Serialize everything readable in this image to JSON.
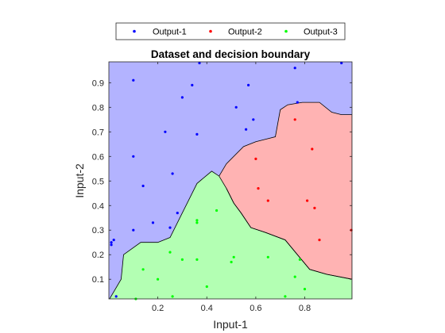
{
  "chart_data": {
    "type": "scatter",
    "title": "Dataset and decision boundary",
    "xlabel": "Input-1",
    "ylabel": "Input-2",
    "xlim": [
      0.0,
      0.993
    ],
    "ylim": [
      0.02,
      0.985
    ],
    "xticks": [
      0.2,
      0.4,
      0.6,
      0.8
    ],
    "xtick_labels": [
      "0.2",
      "0.4",
      "0.6",
      "0.8"
    ],
    "yticks": [
      0.1,
      0.2,
      0.3,
      0.4,
      0.5,
      0.6,
      0.7,
      0.8,
      0.9
    ],
    "ytick_labels": [
      "0.1",
      "0.2",
      "0.3",
      "0.4",
      "0.5",
      "0.6",
      "0.7",
      "0.8",
      "0.9"
    ],
    "grid": false,
    "legend_position": "top, outside, horizontal",
    "series": [
      {
        "name": "Output-1",
        "color": "#0000ff",
        "region_color": "#b3b3ff",
        "points": [
          [
            0.01,
            0.25
          ],
          [
            0.02,
            0.26
          ],
          [
            0.01,
            0.24
          ],
          [
            0.03,
            0.03
          ],
          [
            0.1,
            0.3
          ],
          [
            0.1,
            0.6
          ],
          [
            0.1,
            0.91
          ],
          [
            0.14,
            0.48
          ],
          [
            0.18,
            0.33
          ],
          [
            0.23,
            0.7
          ],
          [
            0.25,
            0.31
          ],
          [
            0.26,
            0.53
          ],
          [
            0.28,
            0.37
          ],
          [
            0.3,
            0.84
          ],
          [
            0.34,
            0.89
          ],
          [
            0.36,
            0.69
          ],
          [
            0.37,
            0.98
          ],
          [
            0.52,
            0.8
          ],
          [
            0.56,
            0.71
          ],
          [
            0.57,
            0.89
          ],
          [
            0.59,
            0.75
          ],
          [
            0.76,
            0.96
          ],
          [
            0.77,
            0.82
          ],
          [
            0.95,
            0.98
          ]
        ]
      },
      {
        "name": "Output-2",
        "color": "#ff0000",
        "region_color": "#ffb3b3",
        "points": [
          [
            0.6,
            0.59
          ],
          [
            0.61,
            0.47
          ],
          [
            0.65,
            0.42
          ],
          [
            0.76,
            0.75
          ],
          [
            0.81,
            0.42
          ],
          [
            0.83,
            0.63
          ],
          [
            0.84,
            0.39
          ],
          [
            0.86,
            0.26
          ],
          [
            0.99,
            0.3
          ]
        ]
      },
      {
        "name": "Output-3",
        "color": "#00ff00",
        "region_color": "#b3ffb3",
        "points": [
          [
            0.11,
            0.02
          ],
          [
            0.14,
            0.14
          ],
          [
            0.2,
            0.1
          ],
          [
            0.25,
            0.21
          ],
          [
            0.26,
            0.03
          ],
          [
            0.36,
            0.34
          ],
          [
            0.36,
            0.33
          ],
          [
            0.36,
            0.18
          ],
          [
            0.44,
            0.38
          ],
          [
            0.5,
            0.17
          ],
          [
            0.51,
            0.19
          ],
          [
            0.65,
            0.19
          ],
          [
            0.72,
            0.03
          ],
          [
            0.76,
            0.11
          ],
          [
            0.78,
            0.18
          ],
          [
            0.8,
            0.06
          ],
          [
            0.4,
            0.07
          ],
          [
            0.3,
            0.18
          ]
        ]
      }
    ],
    "decision_boundary": {
      "output3_region_boundary": [
        [
          0.0,
          0.02
        ],
        [
          0.0,
          0.015
        ],
        [
          0.05,
          0.1
        ],
        [
          0.06,
          0.2
        ],
        [
          0.13,
          0.25
        ],
        [
          0.2,
          0.25
        ],
        [
          0.25,
          0.27
        ],
        [
          0.3,
          0.37
        ],
        [
          0.36,
          0.49
        ],
        [
          0.42,
          0.54
        ],
        [
          0.45,
          0.52
        ],
        [
          0.48,
          0.47
        ],
        [
          0.51,
          0.41
        ],
        [
          0.54,
          0.37
        ],
        [
          0.58,
          0.31
        ],
        [
          0.64,
          0.29
        ],
        [
          0.72,
          0.26
        ],
        [
          0.77,
          0.2
        ],
        [
          0.82,
          0.14
        ],
        [
          0.89,
          0.12
        ],
        [
          0.993,
          0.1
        ],
        [
          0.993,
          0.02
        ]
      ],
      "output2_region_boundary": [
        [
          0.45,
          0.52
        ],
        [
          0.48,
          0.57
        ],
        [
          0.55,
          0.64
        ],
        [
          0.6,
          0.66
        ],
        [
          0.64,
          0.67
        ],
        [
          0.68,
          0.68
        ],
        [
          0.7,
          0.79
        ],
        [
          0.73,
          0.81
        ],
        [
          0.79,
          0.82
        ],
        [
          0.86,
          0.82
        ],
        [
          0.91,
          0.78
        ],
        [
          0.95,
          0.77
        ],
        [
          0.993,
          0.77
        ],
        [
          0.993,
          0.1
        ],
        [
          0.89,
          0.12
        ],
        [
          0.82,
          0.14
        ],
        [
          0.77,
          0.2
        ],
        [
          0.72,
          0.26
        ],
        [
          0.64,
          0.29
        ],
        [
          0.58,
          0.31
        ],
        [
          0.54,
          0.37
        ],
        [
          0.51,
          0.41
        ],
        [
          0.48,
          0.47
        ]
      ]
    }
  }
}
